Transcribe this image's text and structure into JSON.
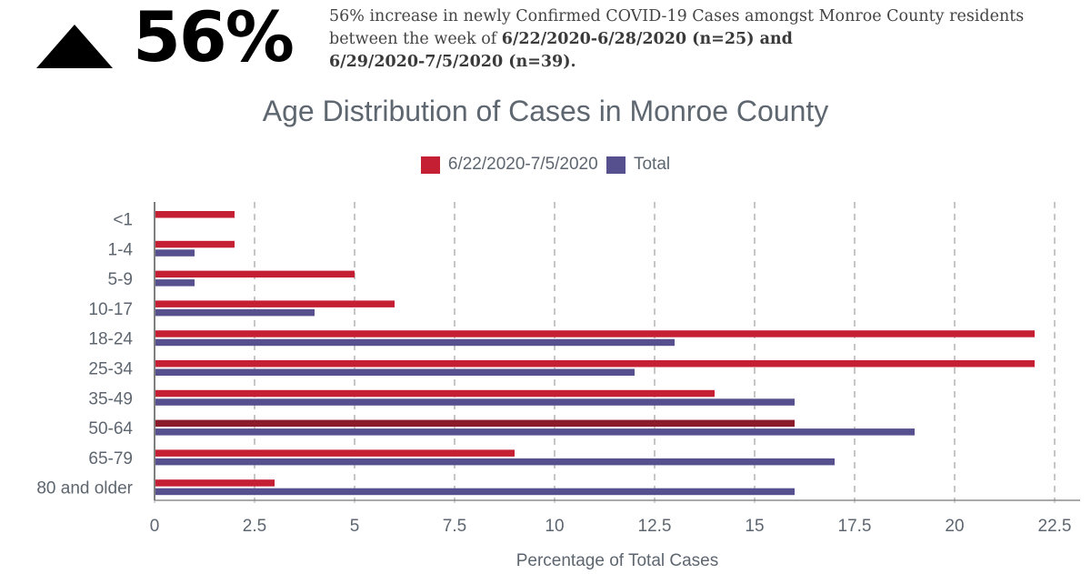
{
  "header": {
    "arrow_icon": "triangle-up-icon",
    "big_value": "56%",
    "description_plain_1": "56% increase in newly Confirmed COVID-19 Cases amongst Monroe County residents between the week of ",
    "description_bold_1": "6/22/2020-6/28/2020 (n=25)",
    "description_bold_2": " and",
    "description_bold_3": "6/29/2020-7/5/2020 (n=39)."
  },
  "colors": {
    "series_recent": "#C51F33",
    "series_recent_highlight": "#8B1A2B",
    "series_total": "#56508E",
    "text": "#5e6670",
    "grid": "#a8a8a8"
  },
  "chart_data": {
    "type": "bar",
    "orientation": "horizontal",
    "title": "Age Distribution of Cases in Monroe County",
    "xlabel": "Percentage of Total Cases",
    "ylabel": "",
    "categories": [
      "<1",
      "1-4",
      "5-9",
      "10-17",
      "18-24",
      "25-34",
      "35-49",
      "50-64",
      "65-79",
      "80 and older"
    ],
    "series": [
      {
        "name": "6/22/2020-7/5/2020",
        "values": [
          2,
          2,
          5,
          6,
          22,
          22,
          14,
          16,
          9,
          3
        ]
      },
      {
        "name": "Total",
        "values": [
          0,
          1,
          1,
          4,
          13,
          12,
          16,
          19,
          17,
          16
        ]
      }
    ],
    "highlighted": {
      "series": 0,
      "category": "50-64"
    },
    "xlim": [
      0,
      22.5
    ],
    "xticks": [
      "0",
      "2.5",
      "5",
      "7.5",
      "10",
      "12.5",
      "15",
      "17.5",
      "20",
      "22.5"
    ],
    "grid": true,
    "grid_style": "dashed vertical",
    "legend_position": "top-center"
  }
}
